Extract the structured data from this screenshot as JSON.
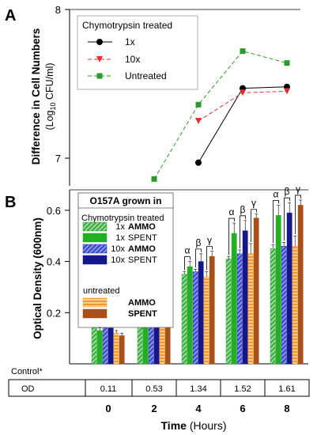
{
  "chart_data": [
    {
      "panel_label": "A",
      "type": "line",
      "ylabel_line1": "Difference in Cell Numbers",
      "ylabel_line2_pre": "(Log",
      "ylabel_sub": "10",
      "ylabel_line2_post": " CFU/ml)",
      "ylim": [
        6.9,
        8.0
      ],
      "yticks": [
        "7",
        "8"
      ],
      "ytick_values": [
        7,
        8
      ],
      "legend_title": "Chymotrypsin treated",
      "legend_position": "top-left",
      "series": [
        {
          "name": "1x",
          "color": "#000000",
          "marker": "circle",
          "dash": "",
          "x": [
            4,
            6,
            8
          ],
          "y": [
            6.97,
            7.47,
            7.48
          ]
        },
        {
          "name": "10x",
          "color": "#e03030",
          "marker": "triangle-down",
          "dash": "5,3",
          "x": [
            4,
            6,
            8
          ],
          "y": [
            7.25,
            7.44,
            7.45
          ]
        },
        {
          "name": "Untreated",
          "color": "#2a9a2a",
          "marker": "square",
          "dash": "5,3",
          "x": [
            2,
            4,
            6,
            8
          ],
          "y": [
            6.86,
            7.36,
            7.72,
            7.64
          ]
        }
      ]
    },
    {
      "panel_label": "B",
      "type": "bar",
      "ylabel": "Optical Density (600nm)",
      "ylim": [
        0.0,
        0.68
      ],
      "yticks": [
        "0.2",
        "0.4",
        "0.6"
      ],
      "ytick_values": [
        0.2,
        0.4,
        0.6
      ],
      "xlabel_bold": "Time",
      "xlabel_rest": " (Hours)",
      "categories": [
        "0",
        "2",
        "4",
        "6",
        "8"
      ],
      "legend_title": "O157A grown in",
      "legend_subtitle": "Chymotrypsin treated",
      "legend_group2": "untreated",
      "series": [
        {
          "prefix": "1x",
          "name": "AMMO",
          "bold": true,
          "color": "#1f9a2a",
          "pattern": "hatch-green",
          "values": [
            0.14,
            0.25,
            0.35,
            0.41,
            0.45
          ],
          "errors": [
            0.01,
            0.005,
            0.01,
            0.01,
            0.015
          ]
        },
        {
          "prefix": "1x",
          "name": "SPENT",
          "bold": false,
          "color": "#22b022",
          "pattern": "",
          "values": [
            0.13,
            0.26,
            0.38,
            0.51,
            0.58
          ],
          "errors": [
            0.01,
            0.005,
            0.02,
            0.04,
            0.04
          ]
        },
        {
          "prefix": "10x",
          "name": "AMMO",
          "bold": true,
          "color": "#1a2fc0",
          "pattern": "hatch-blue",
          "values": [
            0.14,
            0.265,
            0.36,
            0.43,
            0.46
          ],
          "errors": [
            0.01,
            0.01,
            0.01,
            0.015,
            0.015
          ]
        },
        {
          "prefix": "10x",
          "name": "SPENT",
          "bold": false,
          "color": "#14168a",
          "pattern": "",
          "values": [
            0.14,
            0.265,
            0.4,
            0.52,
            0.59
          ],
          "errors": [
            0.01,
            0.02,
            0.03,
            0.04,
            0.04
          ]
        },
        {
          "prefix": "",
          "name": "AMMO",
          "bold": true,
          "color": "#f59a20",
          "pattern": "hatch-orange",
          "values": [
            0.12,
            0.24,
            0.34,
            0.43,
            0.46
          ],
          "errors": [
            0.01,
            0.015,
            0.02,
            0.04,
            0.04
          ]
        },
        {
          "prefix": "",
          "name": "SPENT",
          "bold": true,
          "color": "#a8501a",
          "pattern": "",
          "values": [
            0.11,
            0.26,
            0.42,
            0.57,
            0.62
          ],
          "errors": [
            0.01,
            0.02,
            0.02,
            0.015,
            0.02
          ]
        }
      ],
      "significance_symbols": [
        "α",
        "β",
        "γ"
      ],
      "significance_categories": [
        "4",
        "6",
        "8"
      ]
    }
  ],
  "control_table": {
    "label": "Control*",
    "row_header": "OD",
    "values": [
      "0.11",
      "0.53",
      "1.34",
      "1.52",
      "1.61"
    ]
  }
}
